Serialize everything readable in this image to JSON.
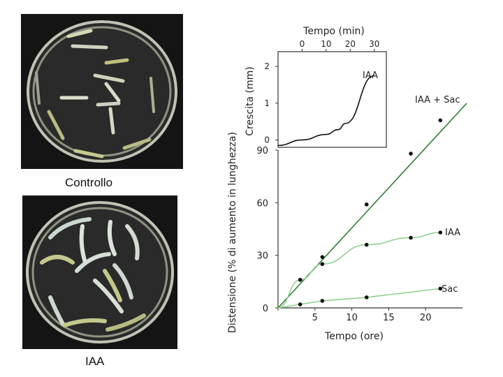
{
  "photos": {
    "top": {
      "caption": "Controllo"
    },
    "bottom": {
      "caption": "IAA"
    }
  },
  "chart_data": [
    {
      "type": "line",
      "xlabel": "Tempo (ore)",
      "ylabel": "Distensione (% di aumento in lunghezza)",
      "xlim": [
        0,
        25
      ],
      "ylim": [
        0,
        90
      ],
      "xticks": [
        0,
        5,
        10,
        15,
        20
      ],
      "yticks": [
        0,
        30,
        60,
        90
      ],
      "series": [
        {
          "name": "IAA + Sac",
          "color": "#2e7d32",
          "x": [
            0,
            3,
            6,
            12,
            18,
            22
          ],
          "y": [
            0,
            16,
            29,
            59,
            88,
            107
          ]
        },
        {
          "name": "IAA",
          "color": "#8fd18f",
          "x": [
            0,
            3,
            6,
            12,
            18,
            22
          ],
          "y": [
            0,
            16,
            25,
            36,
            40,
            43
          ]
        },
        {
          "name": "Sac",
          "color": "#8fd18f",
          "x": [
            3,
            6,
            12,
            22
          ],
          "y": [
            2,
            4,
            6,
            11
          ]
        }
      ]
    },
    {
      "type": "line",
      "title": "Tempo (min)",
      "ylabel": "Crescita (mm)",
      "xlim": [
        -10,
        35
      ],
      "ylim": [
        -0.2,
        2.4
      ],
      "xticks": [
        0,
        10,
        20,
        30
      ],
      "yticks": [
        0,
        1,
        2
      ],
      "series": [
        {
          "name": "IAA",
          "color": "#111111",
          "x": [
            -10,
            0,
            10,
            15,
            18,
            30
          ],
          "y": [
            -0.15,
            0,
            0.15,
            0.28,
            0.45,
            1.75
          ]
        }
      ]
    }
  ]
}
